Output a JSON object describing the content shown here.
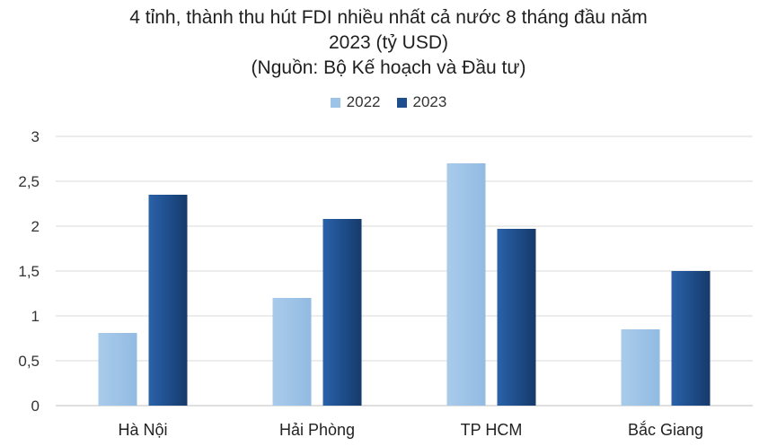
{
  "chart_data": {
    "type": "bar",
    "title_lines": [
      "4 tỉnh, thành thu hút FDI nhiều nhất cả nước 8 tháng đầu năm",
      "2023 (tỷ USD)",
      "(Nguồn: Bộ Kế hoạch và Đầu tư)"
    ],
    "categories": [
      "Hà Nội",
      "Hải Phòng",
      "TP HCM",
      "Bắc Giang"
    ],
    "series": [
      {
        "name": "2022",
        "values": [
          0.81,
          1.2,
          2.7,
          0.85
        ],
        "color": "#9dc3e6"
      },
      {
        "name": "2023",
        "values": [
          2.35,
          2.08,
          1.97,
          1.5
        ],
        "color": "#1f4e8c"
      }
    ],
    "ylim": [
      0,
      3
    ],
    "yticks": [
      "0",
      "0,5",
      "1",
      "1,5",
      "2",
      "2,5",
      "3"
    ],
    "ytick_values": [
      0,
      0.5,
      1,
      1.5,
      2,
      2.5,
      3
    ],
    "grid": true,
    "legend_position": "top-center"
  }
}
